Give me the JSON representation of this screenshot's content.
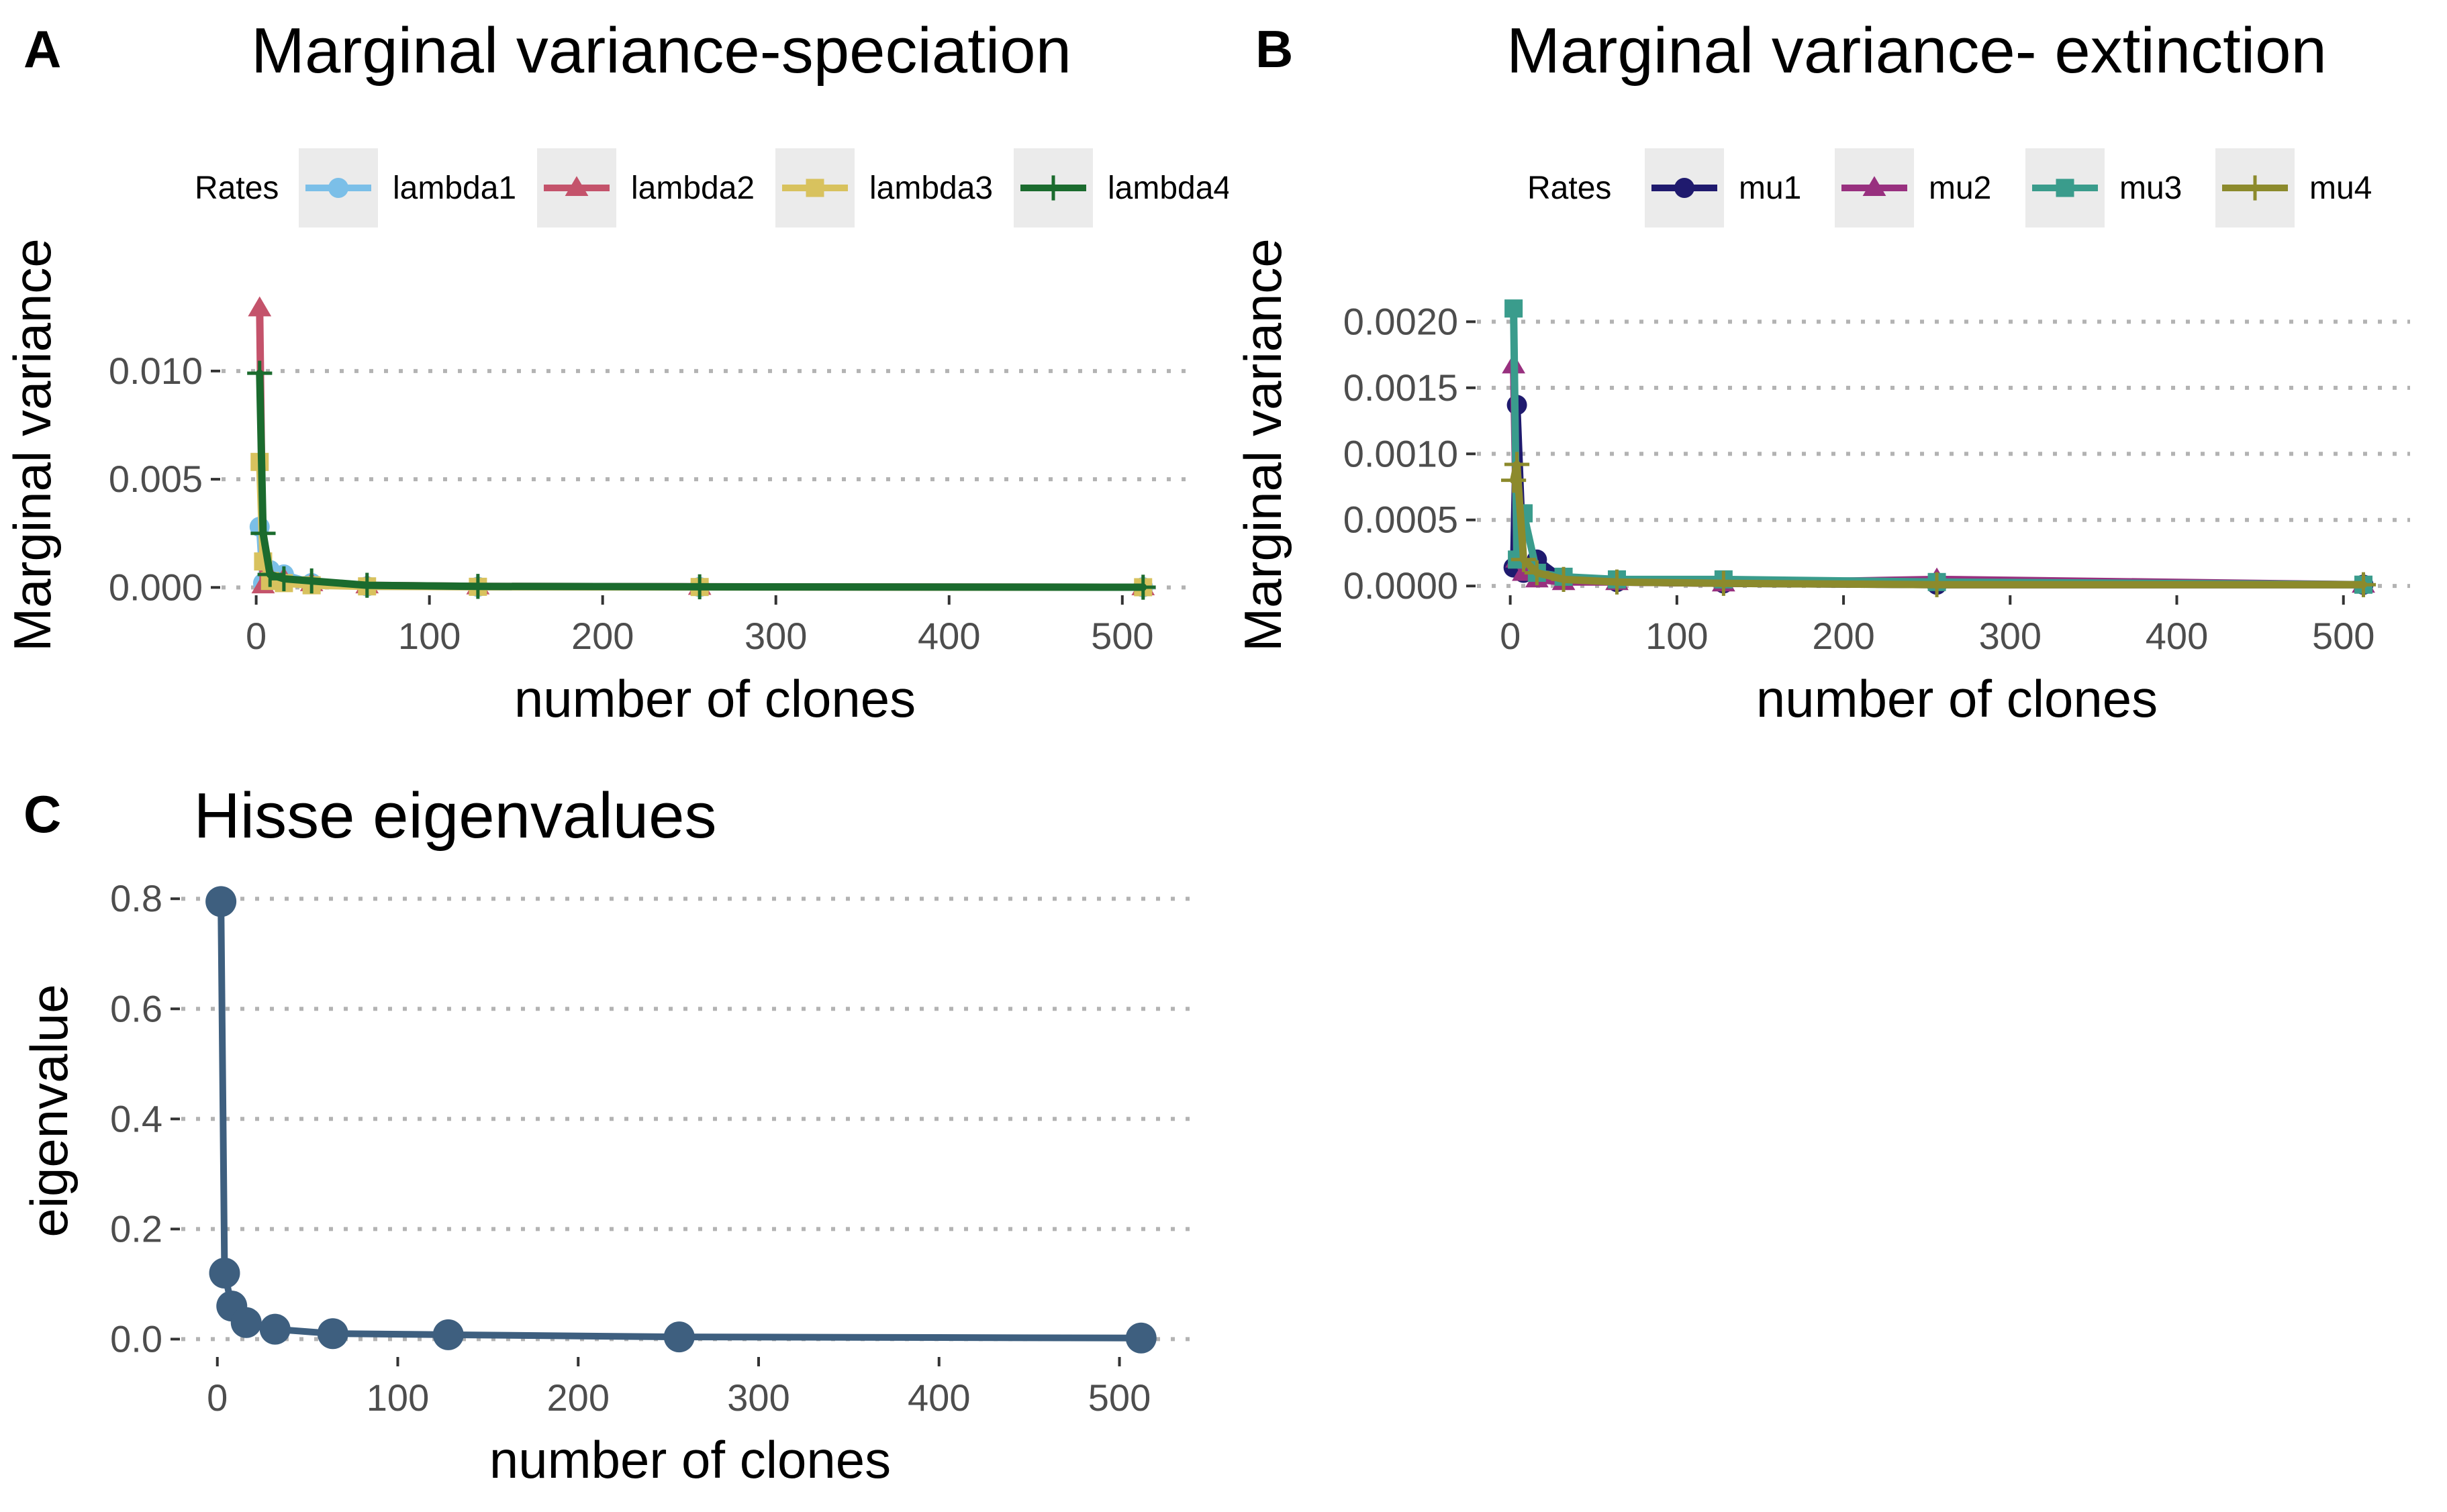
{
  "chart_data": [
    {
      "type": "line",
      "panel": "A",
      "title": "Marginal variance-speciation",
      "xlabel": "number of clones",
      "ylabel": "Marginal variance",
      "xlim": [
        -20,
        540
      ],
      "ylim": [
        -0.0003,
        0.0135
      ],
      "xticks": [
        0,
        100,
        200,
        300,
        400,
        500
      ],
      "yticks": [
        0,
        0.005,
        0.01
      ],
      "ytick_labels": [
        "0.000",
        "0.005",
        "0.010"
      ],
      "grid": "horizontal dotted",
      "legend": {
        "title": "Rates",
        "position": "top"
      },
      "x": [
        2,
        4,
        8,
        16,
        32,
        64,
        128,
        256,
        512
      ],
      "series": [
        {
          "name": "lambda1",
          "color": "#7bbfe8",
          "marker": "circle",
          "values": [
            0.0028,
            0.0002,
            0.0008,
            0.0006,
            0.0002,
            5e-05,
            3e-05,
            2e-05,
            1e-05
          ]
        },
        {
          "name": "lambda2",
          "color": "#c4536b",
          "marker": "triangle",
          "values": [
            0.0129,
            0.0001,
            0.0005,
            0.0004,
            0.0002,
            0.0001,
            5e-05,
            3e-05,
            1e-05
          ]
        },
        {
          "name": "lambda3",
          "color": "#d8c25e",
          "marker": "square",
          "values": [
            0.0058,
            0.0012,
            0.0003,
            0.0002,
            0.0001,
            5e-05,
            3e-05,
            2e-05,
            1e-05
          ]
        },
        {
          "name": "lambda4",
          "color": "#1b6b2e",
          "marker": "plus",
          "values": [
            0.0099,
            0.0025,
            0.0006,
            0.0004,
            0.0003,
            0.0001,
            5e-05,
            3e-05,
            1e-05
          ]
        }
      ]
    },
    {
      "type": "line",
      "panel": "B",
      "title": "Marginal variance- extinction",
      "xlabel": "number of clones",
      "ylabel": "Marginal variance",
      "xlim": [
        -20,
        540
      ],
      "ylim": [
        -6e-05,
        0.0022
      ],
      "xticks": [
        0,
        100,
        200,
        300,
        400,
        500
      ],
      "yticks": [
        0,
        0.0005,
        0.001,
        0.0015,
        0.002
      ],
      "ytick_labels": [
        "0.0000",
        "0.0005",
        "0.0010",
        "0.0015",
        "0.0020"
      ],
      "grid": "horizontal dotted",
      "legend": {
        "title": "Rates",
        "position": "top"
      },
      "x": [
        2,
        4,
        8,
        16,
        32,
        64,
        128,
        256,
        512
      ],
      "series": [
        {
          "name": "mu1",
          "color": "#1f1a6e",
          "marker": "circle",
          "values": [
            0.00014,
            0.00137,
            0.0001,
            0.0002,
            5e-05,
            3e-05,
            2e-05,
            1e-05,
            1e-05
          ]
        },
        {
          "name": "mu2",
          "color": "#98307f",
          "marker": "triangle",
          "values": [
            0.00167,
            0.0002,
            0.0001,
            5e-05,
            3e-05,
            3e-05,
            2e-05,
            5e-05,
            1e-05
          ]
        },
        {
          "name": "mu3",
          "color": "#3a9c8c",
          "marker": "square",
          "values": [
            0.0021,
            0.0002,
            0.00055,
            0.0001,
            7e-05,
            5e-05,
            5e-05,
            3e-05,
            1e-05
          ]
        },
        {
          "name": "mu4",
          "color": "#8c8a2c",
          "marker": "plus",
          "values": [
            0.0008,
            0.00092,
            0.0002,
            0.0001,
            5e-05,
            3e-05,
            2e-05,
            1e-05,
            1e-05
          ]
        }
      ]
    },
    {
      "type": "line",
      "panel": "C",
      "title": "Hisse eigenvalues",
      "xlabel": "number of clones",
      "ylabel": "eigenvalue",
      "xlim": [
        -20,
        540
      ],
      "ylim": [
        -0.03,
        0.86
      ],
      "xticks": [
        0,
        100,
        200,
        300,
        400,
        500
      ],
      "yticks": [
        0,
        0.2,
        0.4,
        0.6,
        0.8
      ],
      "ytick_labels": [
        "0.0",
        "0.2",
        "0.4",
        "0.6",
        "0.8"
      ],
      "grid": "horizontal dotted",
      "x": [
        2,
        4,
        8,
        16,
        32,
        64,
        128,
        256,
        512
      ],
      "series": [
        {
          "color": "#3e5f7f",
          "marker": "circle",
          "values": [
            0.795,
            0.12,
            0.06,
            0.03,
            0.018,
            0.01,
            0.008,
            0.004,
            0.002
          ]
        }
      ]
    }
  ]
}
